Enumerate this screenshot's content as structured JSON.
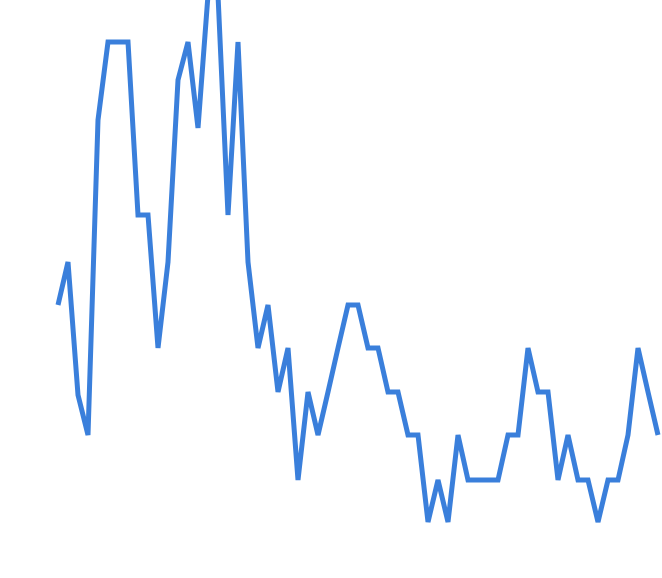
{
  "chart_data": {
    "type": "line",
    "color": "#3a7fdb",
    "ylim": [
      0,
      578
    ],
    "values": [
      273,
      316,
      183,
      143,
      458,
      536,
      536,
      536,
      363,
      363,
      230,
      316,
      498,
      536,
      450,
      583,
      583,
      363,
      536,
      316,
      230,
      273,
      186,
      230,
      98,
      186,
      143,
      186,
      230,
      273,
      273,
      230,
      230,
      186,
      186,
      143,
      143,
      56,
      98,
      56,
      143,
      98,
      98,
      98,
      98,
      143,
      143,
      230,
      186,
      186,
      98,
      143,
      98,
      98,
      56,
      98,
      98,
      143,
      230,
      186,
      143
    ]
  }
}
